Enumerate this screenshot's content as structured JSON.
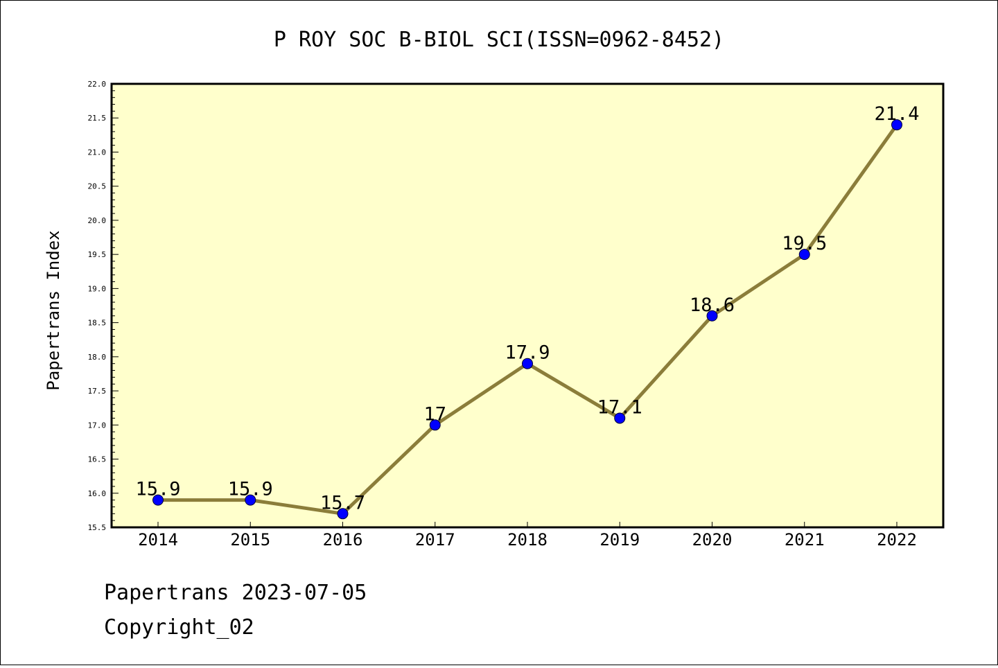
{
  "chart_data": {
    "type": "line",
    "title": "P ROY SOC B-BIOL SCI(ISSN=0962-8452)",
    "xlabel": "",
    "ylabel": "Papertrans Index",
    "x": [
      "2014",
      "2015",
      "2016",
      "2017",
      "2018",
      "2019",
      "2020",
      "2021",
      "2022"
    ],
    "values": [
      15.9,
      15.9,
      15.7,
      17,
      17.9,
      17.1,
      18.6,
      19.5,
      21.4
    ],
    "data_labels": [
      "15.9",
      "15.9",
      "15.7",
      "17",
      "17.9",
      "17.1",
      "18.6",
      "19.5",
      "21.4"
    ],
    "ylim": [
      15.5,
      22.0
    ],
    "yticks": [
      "15.5",
      "16.0",
      "16.5",
      "17.0",
      "17.5",
      "18.0",
      "18.5",
      "19.0",
      "19.5",
      "20.0",
      "20.5",
      "21.0",
      "21.5",
      "22.0"
    ],
    "grid": false,
    "legend": "none",
    "colors": {
      "plot_bg": "#ffffcc",
      "line": "#8b7d3a",
      "marker": "#0000ff"
    }
  },
  "footer": {
    "line1": "Papertrans 2023-07-05",
    "line2": "Copyright_02"
  }
}
